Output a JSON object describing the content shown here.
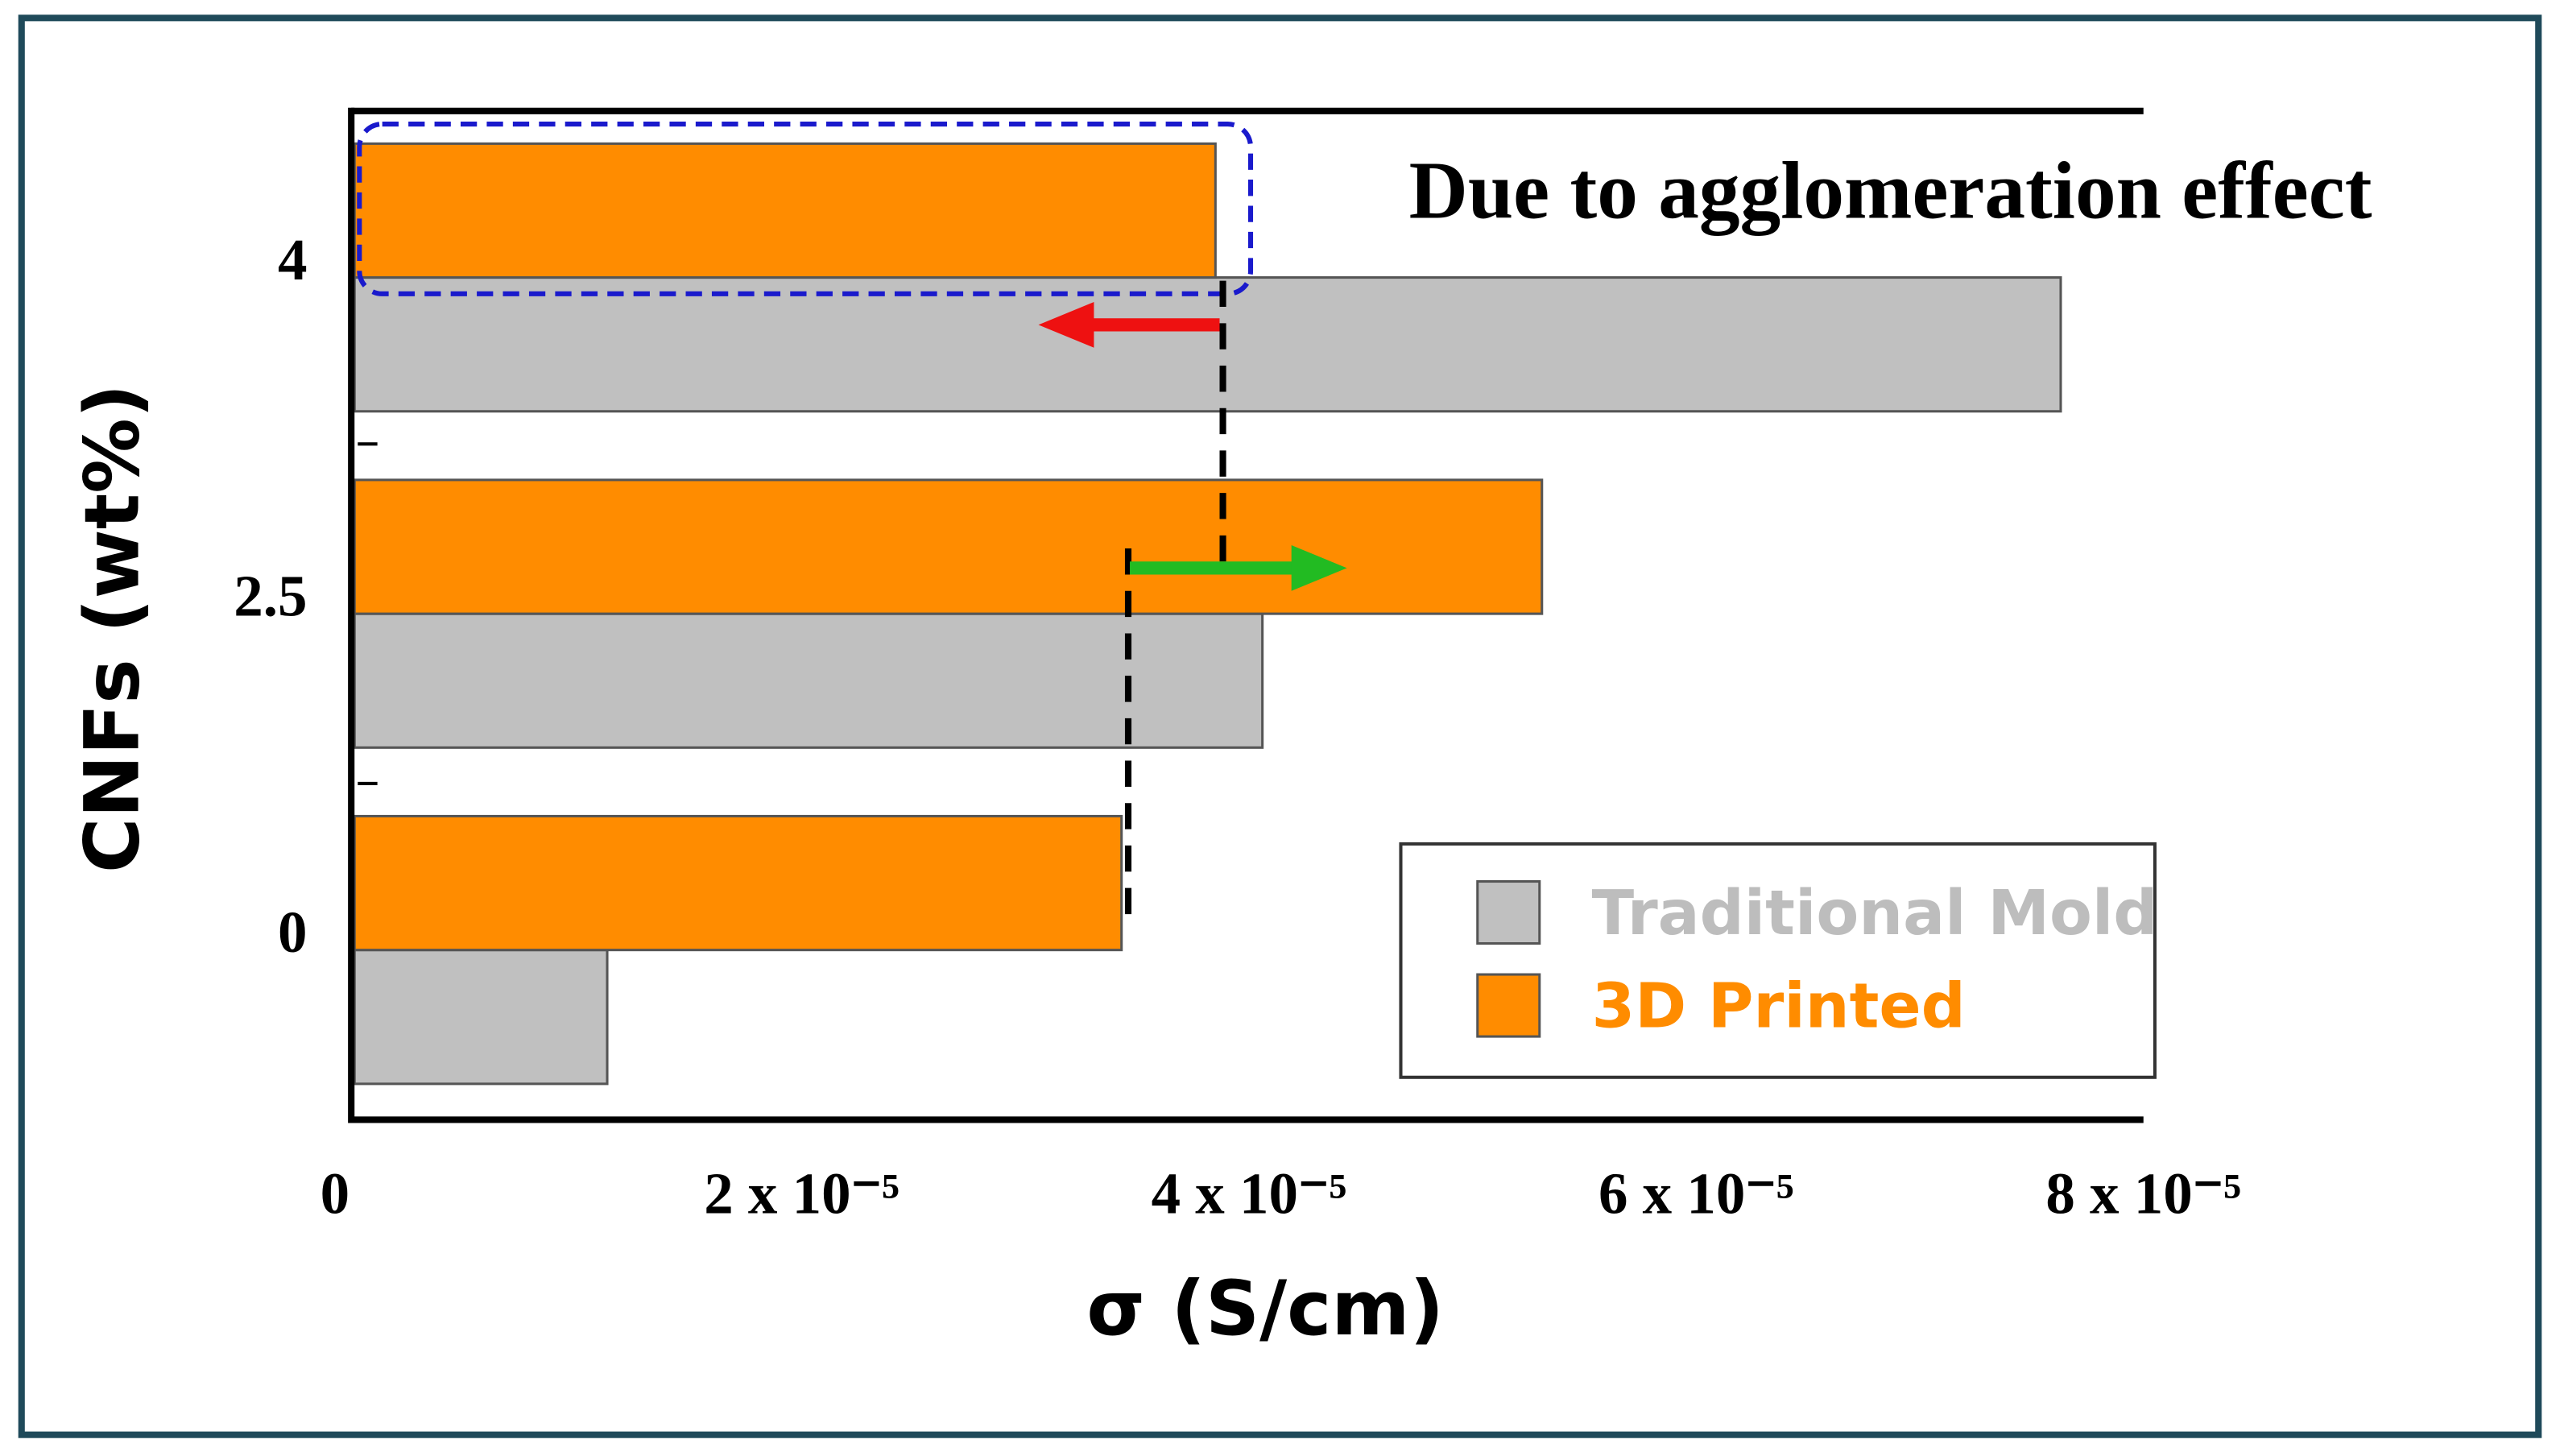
{
  "chart_data": {
    "type": "barh",
    "xlabel": "σ (S/cm)",
    "ylabel": "CNFs (wt%)",
    "annotation": "Due to agglomeration effect",
    "categories": [
      "0",
      "2.5",
      "4"
    ],
    "series": [
      {
        "name": "Traditional Mold",
        "color": "#c0c0c0",
        "values": [
          1.13e-05,
          4.06e-05,
          7.63e-05
        ]
      },
      {
        "name": "3D Printed",
        "color": "#ff8c00",
        "values": [
          3.43e-05,
          5.31e-05,
          3.85e-05
        ]
      }
    ],
    "xlim": [
      0,
      8e-05
    ],
    "xticks": [
      0,
      {
        "value": 2e-05,
        "label": "2 x 10⁻⁵"
      },
      {
        "value": 4e-05,
        "label": "4 x 10⁻⁵"
      },
      {
        "value": 6e-05,
        "label": "6 x 10⁻⁵"
      },
      {
        "value": 8e-05,
        "label": "8 x 10⁻⁵"
      }
    ],
    "legend": "lower right"
  }
}
